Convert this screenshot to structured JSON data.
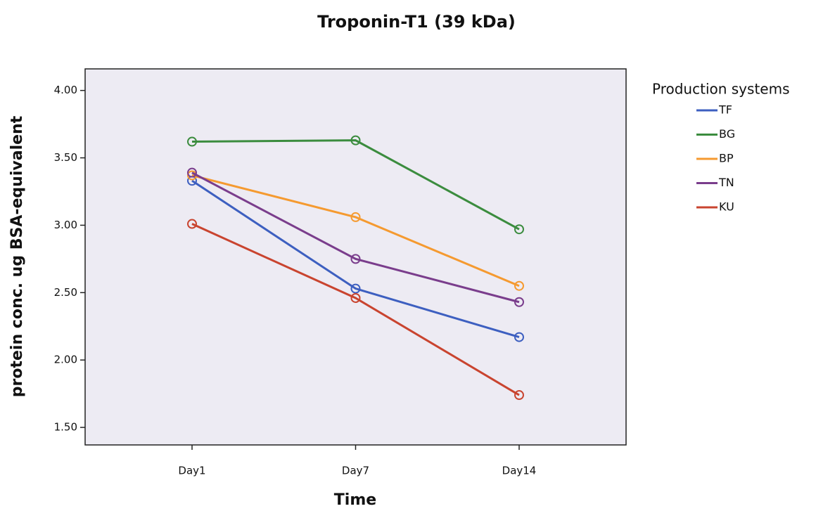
{
  "chart_data": {
    "type": "line",
    "title": "Troponin-T1 (39 kDa)",
    "x_label": "Time",
    "y_label": "protein conc. ug BSA-equivalent",
    "legend_title": "Production systems",
    "categories": [
      "Day1",
      "Day7",
      "Day14"
    ],
    "ylim": [
      1.37,
      4.16
    ],
    "yticks": [
      {
        "value": 1.5,
        "label": "1.50"
      },
      {
        "value": 2,
        "label": "2.00"
      },
      {
        "value": 2.5,
        "label": "2.50"
      },
      {
        "value": 3,
        "label": "3.00"
      },
      {
        "value": 3.5,
        "label": "3.50"
      },
      {
        "value": 4,
        "label": "4.00"
      }
    ],
    "legend_position": "right",
    "series": [
      {
        "name": "TF",
        "color": "#3d5fc0",
        "values": [
          3.33,
          2.53,
          2.17
        ]
      },
      {
        "name": "BG",
        "color": "#3b8c3e",
        "values": [
          3.62,
          3.63,
          2.97
        ]
      },
      {
        "name": "BP",
        "color": "#f59a30",
        "values": [
          3.37,
          3.06,
          2.55
        ]
      },
      {
        "name": "TN",
        "color": "#7a3d8c",
        "values": [
          3.39,
          2.75,
          2.43
        ]
      },
      {
        "name": "KU",
        "color": "#c9442f",
        "values": [
          3.01,
          2.46,
          1.74
        ]
      }
    ]
  }
}
